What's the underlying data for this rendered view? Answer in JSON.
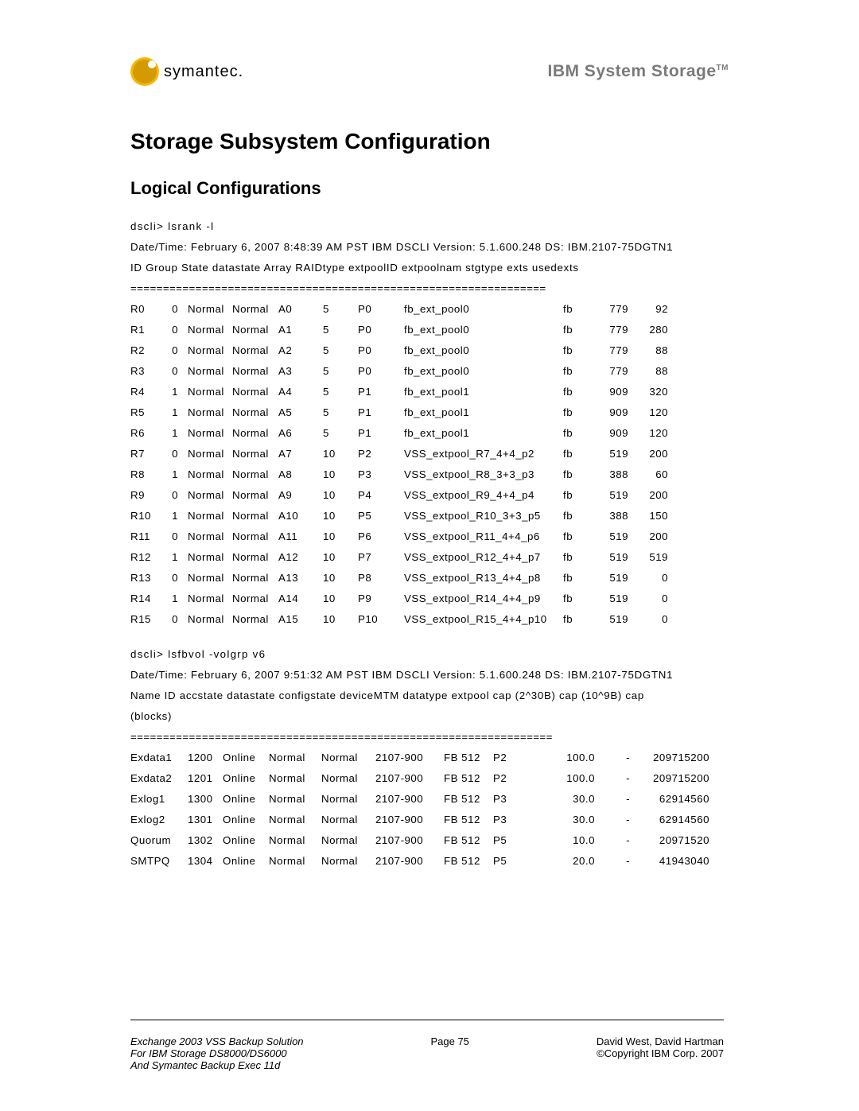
{
  "header": {
    "symantec_text": "symantec.",
    "ibm_text": "IBM System Storage",
    "ibm_tm": "TM"
  },
  "title": "Storage Subsystem Configuration",
  "subtitle": "Logical Configurations",
  "lsrank": {
    "cmd": "dscli> lsrank -l",
    "meta": "Date/Time: February 6, 2007 8:48:39 AM PST IBM DSCLI Version: 5.1.600.248 DS: IBM.2107-75DGTN1",
    "header": "ID  Group State  datastate Array RAIDtype extpoolID extpoolnam              stgtype exts  usedexts",
    "divider": "================================================================",
    "rows": [
      {
        "id": "R0",
        "group": "0",
        "state": "Normal",
        "datastate": "Normal",
        "array": "A0",
        "raid": "5",
        "extpool": "P0",
        "extpoolnam": "fb_ext_pool0",
        "stg": "fb",
        "exts": "779",
        "used": "92"
      },
      {
        "id": "R1",
        "group": "0",
        "state": "Normal",
        "datastate": "Normal",
        "array": "A1",
        "raid": "5",
        "extpool": "P0",
        "extpoolnam": "fb_ext_pool0",
        "stg": "fb",
        "exts": "779",
        "used": "280"
      },
      {
        "id": "R2",
        "group": "0",
        "state": "Normal",
        "datastate": "Normal",
        "array": "A2",
        "raid": "5",
        "extpool": "P0",
        "extpoolnam": "fb_ext_pool0",
        "stg": "fb",
        "exts": "779",
        "used": "88"
      },
      {
        "id": "R3",
        "group": "0",
        "state": "Normal",
        "datastate": "Normal",
        "array": "A3",
        "raid": "5",
        "extpool": "P0",
        "extpoolnam": "fb_ext_pool0",
        "stg": "fb",
        "exts": "779",
        "used": "88"
      },
      {
        "id": "R4",
        "group": "1",
        "state": "Normal",
        "datastate": "Normal",
        "array": "A4",
        "raid": "5",
        "extpool": "P1",
        "extpoolnam": "fb_ext_pool1",
        "stg": "fb",
        "exts": "909",
        "used": "320"
      },
      {
        "id": "R5",
        "group": "1",
        "state": "Normal",
        "datastate": "Normal",
        "array": "A5",
        "raid": "5",
        "extpool": "P1",
        "extpoolnam": "fb_ext_pool1",
        "stg": "fb",
        "exts": "909",
        "used": "120"
      },
      {
        "id": "R6",
        "group": "1",
        "state": "Normal",
        "datastate": "Normal",
        "array": "A6",
        "raid": "5",
        "extpool": "P1",
        "extpoolnam": "fb_ext_pool1",
        "stg": "fb",
        "exts": "909",
        "used": "120"
      },
      {
        "id": "R7",
        "group": "0",
        "state": "Normal",
        "datastate": "Normal",
        "array": "A7",
        "raid": "10",
        "extpool": "P2",
        "extpoolnam": "VSS_extpool_R7_4+4_p2",
        "stg": "fb",
        "exts": "519",
        "used": "200"
      },
      {
        "id": "R8",
        "group": "1",
        "state": "Normal",
        "datastate": "Normal",
        "array": "A8",
        "raid": "10",
        "extpool": "P3",
        "extpoolnam": "VSS_extpool_R8_3+3_p3",
        "stg": "fb",
        "exts": "388",
        "used": "60"
      },
      {
        "id": "R9",
        "group": "0",
        "state": "Normal",
        "datastate": "Normal",
        "array": "A9",
        "raid": "10",
        "extpool": "P4",
        "extpoolnam": "VSS_extpool_R9_4+4_p4",
        "stg": "fb",
        "exts": "519",
        "used": "200"
      },
      {
        "id": "R10",
        "group": "1",
        "state": "Normal",
        "datastate": "Normal",
        "array": "A10",
        "raid": "10",
        "extpool": "P5",
        "extpoolnam": "VSS_extpool_R10_3+3_p5",
        "stg": "fb",
        "exts": "388",
        "used": "150"
      },
      {
        "id": "R11",
        "group": "0",
        "state": "Normal",
        "datastate": "Normal",
        "array": "A11",
        "raid": "10",
        "extpool": "P6",
        "extpoolnam": "VSS_extpool_R11_4+4_p6",
        "stg": "fb",
        "exts": "519",
        "used": "200"
      },
      {
        "id": "R12",
        "group": "1",
        "state": "Normal",
        "datastate": "Normal",
        "array": "A12",
        "raid": "10",
        "extpool": "P7",
        "extpoolnam": "VSS_extpool_R12_4+4_p7",
        "stg": "fb",
        "exts": "519",
        "used": "519"
      },
      {
        "id": "R13",
        "group": "0",
        "state": "Normal",
        "datastate": "Normal",
        "array": "A13",
        "raid": "10",
        "extpool": "P8",
        "extpoolnam": "VSS_extpool_R13_4+4_p8",
        "stg": "fb",
        "exts": "519",
        "used": "0"
      },
      {
        "id": "R14",
        "group": "1",
        "state": "Normal",
        "datastate": "Normal",
        "array": "A14",
        "raid": "10",
        "extpool": "P9",
        "extpoolnam": "VSS_extpool_R14_4+4_p9",
        "stg": "fb",
        "exts": "519",
        "used": "0"
      },
      {
        "id": "R15",
        "group": "0",
        "state": "Normal",
        "datastate": "Normal",
        "array": "A15",
        "raid": "10",
        "extpool": "P10",
        "extpoolnam": "VSS_extpool_R15_4+4_p10",
        "stg": "fb",
        "exts": "519",
        "used": "0"
      }
    ]
  },
  "lsfbvol": {
    "cmd": "dscli> lsfbvol  -volgrp v6",
    "meta": "Date/Time: February 6, 2007 9:51:32 AM PST IBM DSCLI Version: 5.1.600.248 DS: IBM.2107-75DGTN1",
    "header1": "Name    ID accstate datastate configstate deviceMTM datatype extpool cap (2^30B) cap (10^9B) cap",
    "header2": "(blocks)",
    "divider": "=================================================================",
    "rows": [
      {
        "name": "Exdata1",
        "id": "1200",
        "acc": "Online",
        "data": "Normal",
        "conf": "Normal",
        "mtm": "2107-900",
        "dt": "FB 512",
        "ext": "P2",
        "cap30": "100.0",
        "cap9": "-",
        "capb": "209715200"
      },
      {
        "name": "Exdata2",
        "id": "1201",
        "acc": "Online",
        "data": "Normal",
        "conf": "Normal",
        "mtm": "2107-900",
        "dt": "FB 512",
        "ext": "P2",
        "cap30": "100.0",
        "cap9": "-",
        "capb": "209715200"
      },
      {
        "name": "Exlog1",
        "id": "1300",
        "acc": "Online",
        "data": "Normal",
        "conf": "Normal",
        "mtm": "2107-900",
        "dt": "FB 512",
        "ext": "P3",
        "cap30": "30.0",
        "cap9": "-",
        "capb": "62914560"
      },
      {
        "name": "Exlog2",
        "id": "1301",
        "acc": "Online",
        "data": "Normal",
        "conf": "Normal",
        "mtm": "2107-900",
        "dt": "FB 512",
        "ext": "P3",
        "cap30": "30.0",
        "cap9": "-",
        "capb": "62914560"
      },
      {
        "name": "Quorum",
        "id": "1302",
        "acc": "Online",
        "data": "Normal",
        "conf": "Normal",
        "mtm": "2107-900",
        "dt": "FB 512",
        "ext": "P5",
        "cap30": "10.0",
        "cap9": "-",
        "capb": "20971520"
      },
      {
        "name": "SMTPQ",
        "id": "1304",
        "acc": "Online",
        "data": "Normal",
        "conf": "Normal",
        "mtm": "2107-900",
        "dt": "FB 512",
        "ext": "P5",
        "cap30": "20.0",
        "cap9": "-",
        "capb": "41943040"
      }
    ]
  },
  "footer": {
    "left1": "Exchange 2003 VSS Backup Solution",
    "left2": "For IBM Storage DS8000/DS6000",
    "left3": "And Symantec Backup Exec 11d",
    "center": "Page 75",
    "right1": "David West, David Hartman",
    "right2": "©Copyright IBM Corp. 2007"
  }
}
